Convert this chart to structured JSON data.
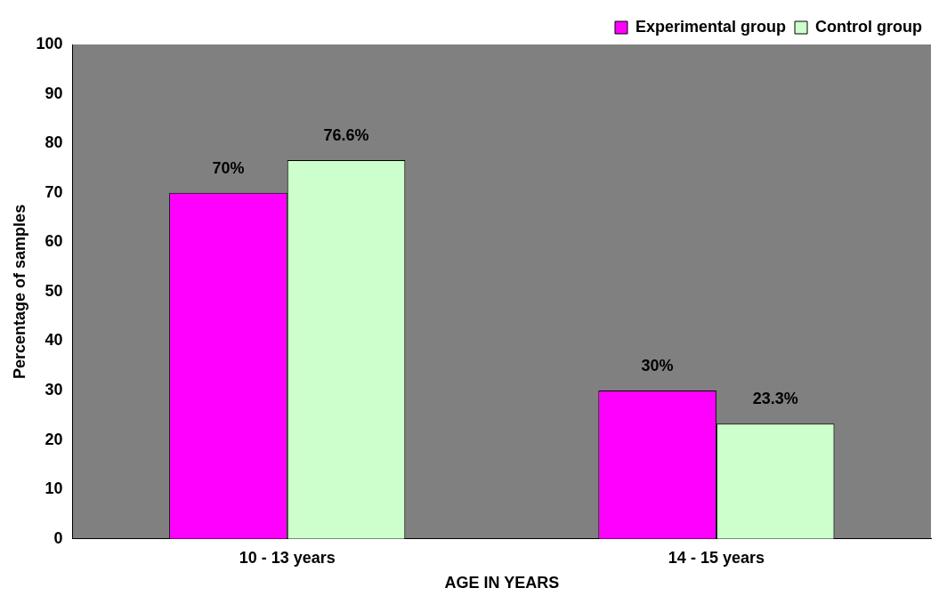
{
  "chart_data": {
    "type": "bar",
    "xlabel": "AGE IN YEARS",
    "ylabel": "Percentage of samples",
    "categories": [
      "10 - 13 years",
      "14 - 15 years"
    ],
    "series": [
      {
        "name": "Experimental group",
        "color": "#ff00ff",
        "values": [
          70,
          30
        ],
        "value_labels": [
          "70%",
          "30%"
        ]
      },
      {
        "name": "Control group",
        "color": "#ccffcc",
        "values": [
          76.6,
          23.3
        ],
        "value_labels": [
          "76.6%",
          "23.3%"
        ]
      }
    ],
    "ylim": [
      0,
      100
    ],
    "yticks": [
      0,
      10,
      20,
      30,
      40,
      50,
      60,
      70,
      80,
      90,
      100
    ],
    "grid": false,
    "legend": "top right"
  }
}
